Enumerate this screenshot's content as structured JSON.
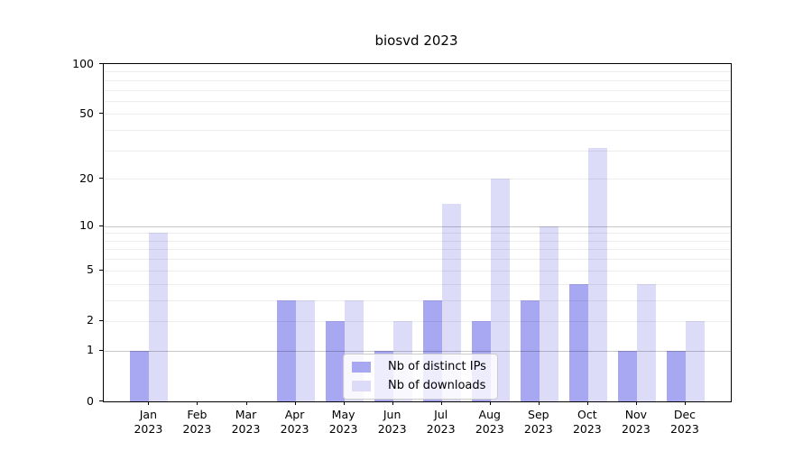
{
  "chart_data": {
    "type": "bar",
    "title": "biosvd 2023",
    "categories": [
      {
        "month": "Jan",
        "year": "2023"
      },
      {
        "month": "Feb",
        "year": "2023"
      },
      {
        "month": "Mar",
        "year": "2023"
      },
      {
        "month": "Apr",
        "year": "2023"
      },
      {
        "month": "May",
        "year": "2023"
      },
      {
        "month": "Jun",
        "year": "2023"
      },
      {
        "month": "Jul",
        "year": "2023"
      },
      {
        "month": "Aug",
        "year": "2023"
      },
      {
        "month": "Sep",
        "year": "2023"
      },
      {
        "month": "Oct",
        "year": "2023"
      },
      {
        "month": "Nov",
        "year": "2023"
      },
      {
        "month": "Dec",
        "year": "2023"
      }
    ],
    "series": [
      {
        "name": "Nb of distinct IPs",
        "color": "#a7a7f2",
        "values": [
          1,
          0,
          0,
          3,
          2,
          1,
          3,
          2,
          3,
          4,
          1,
          1
        ]
      },
      {
        "name": "Nb of downloads",
        "color": "#dcdcf9",
        "values": [
          9,
          0,
          0,
          3,
          3,
          2,
          14,
          20,
          10,
          31,
          4,
          2
        ]
      }
    ],
    "yscale": "log1p",
    "ylim": [
      0,
      100
    ],
    "yticks": [
      0,
      1,
      2,
      5,
      10,
      20,
      50,
      100
    ],
    "minor_gridlines": [
      2,
      3,
      4,
      5,
      6,
      7,
      8,
      9,
      20,
      30,
      40,
      50,
      60,
      70,
      80,
      90
    ],
    "major_gridlines": [
      1,
      10
    ],
    "grid": true,
    "legend_position": "inside-lower-center",
    "xlabel": "",
    "ylabel": ""
  }
}
